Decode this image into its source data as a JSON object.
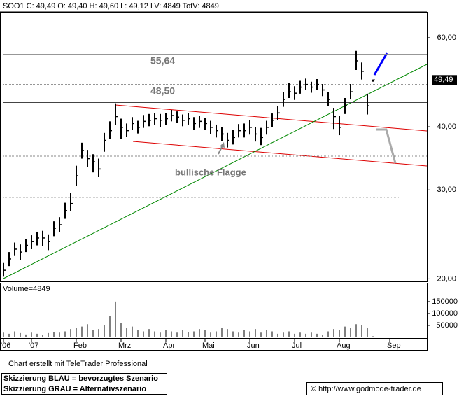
{
  "chart_data": [
    {
      "type": "ohlc",
      "title": "SOO1 C: 49,49 O: 49,40 H: 49,60 L: 49,12 LV: 4849 TotV: 4849",
      "log_scale": true,
      "grid": false,
      "color": "#000000",
      "categories": [
        "'06",
        null,
        null,
        null,
        null,
        "'07",
        null,
        null,
        null,
        null,
        null,
        null,
        null,
        "Feb",
        null,
        null,
        null,
        null,
        null,
        null,
        null,
        "Mrz",
        null,
        null,
        null,
        null,
        null,
        null,
        null,
        "Apr",
        null,
        null,
        null,
        null,
        null,
        null,
        "Mai",
        null,
        null,
        null,
        null,
        null,
        null,
        null,
        "Jun",
        null,
        null,
        null,
        null,
        null,
        null,
        null,
        "Jul",
        null,
        null,
        null,
        null,
        null,
        null,
        null,
        "Aug",
        null,
        null,
        null,
        null,
        null,
        null,
        null,
        null,
        "Sep",
        null,
        null,
        null,
        null,
        null,
        null
      ],
      "high": [
        21.5,
        22.6,
        23.6,
        23.4,
        24.0,
        24.4,
        24.8,
        24.9,
        24.5,
        26.0,
        26.5,
        28.3,
        29.6,
        33.5,
        37.2,
        36.0,
        35.3,
        34.6,
        38.9,
        41.0,
        44.5,
        41.5,
        40.6,
        41.8,
        41.1,
        42.2,
        42.4,
        42.6,
        42.4,
        42.6,
        43.2,
        42.9,
        42.3,
        42.6,
        41.8,
        42.1,
        41.7,
        41.1,
        40.4,
        39.9,
        38.9,
        39.4,
        40.5,
        40.6,
        41.2,
        40.0,
        39.8,
        41.1,
        42.5,
        44.0,
        46.8,
        48.8,
        48.1,
        49.3,
        49.8,
        49.1,
        49.7,
        48.6,
        46.8,
        43.6,
        42.0,
        45.6,
        48.6,
        56.5,
        53.6,
        46.5,
        49.6,
        null,
        null,
        null,
        null,
        null,
        null,
        null,
        null,
        null
      ],
      "low": [
        20.2,
        21.2,
        22.2,
        21.8,
        22.6,
        22.9,
        23.3,
        23.2,
        22.8,
        24.3,
        24.8,
        26.3,
        27.2,
        30.6,
        34.6,
        33.3,
        32.5,
        31.8,
        35.7,
        37.8,
        40.3,
        37.9,
        38.2,
        39.4,
        38.8,
        39.8,
        40.1,
        40.4,
        40.0,
        40.3,
        41.0,
        40.7,
        40.1,
        40.4,
        39.5,
        39.8,
        39.5,
        38.7,
        38.1,
        37.5,
        36.4,
        36.9,
        38.1,
        38.1,
        38.6,
        37.4,
        36.8,
        38.6,
        40.0,
        41.3,
        43.8,
        45.6,
        45.2,
        46.5,
        47.3,
        46.7,
        47.3,
        46.0,
        43.9,
        39.6,
        38.5,
        42.4,
        45.3,
        51.8,
        49.6,
        42.3,
        49.12,
        null,
        null,
        null,
        null,
        null,
        null,
        null,
        null,
        null
      ],
      "close": [
        20.8,
        21.9,
        22.9,
        22.6,
        23.3,
        23.7,
        24.1,
        24.1,
        23.7,
        25.2,
        25.6,
        27.3,
        28.2,
        32.0,
        35.9,
        34.6,
        34.1,
        33.0,
        37.6,
        39.3,
        41.9,
        39.9,
        39.3,
        40.6,
        39.9,
        41.0,
        41.2,
        41.5,
        41.2,
        41.5,
        42.1,
        41.8,
        41.2,
        41.5,
        40.6,
        41.0,
        40.6,
        39.9,
        39.3,
        38.7,
        37.6,
        38.1,
        39.3,
        39.3,
        39.9,
        38.7,
        38.1,
        39.9,
        41.2,
        42.6,
        45.3,
        46.9,
        46.6,
        47.9,
        48.5,
        47.9,
        48.5,
        47.3,
        45.3,
        41.9,
        39.9,
        44.0,
        46.9,
        54.0,
        51.5,
        44.0,
        49.49,
        null,
        null,
        null,
        null,
        null,
        null,
        null,
        null,
        null
      ],
      "ylim": [
        19.9,
        67.5
      ],
      "yticks": [
        {
          "value": 20,
          "label": "20,00"
        },
        {
          "value": 30,
          "label": "30,00"
        },
        {
          "value": 40,
          "label": "40,00"
        },
        {
          "value": 60,
          "label": "60,00"
        }
      ],
      "hlines": [
        {
          "value": 55.64,
          "label": "55,64"
        },
        {
          "value": 48.5,
          "label": "48,50"
        }
      ],
      "lines": [
        44.7,
        35.0,
        29.0
      ],
      "last_price": {
        "value": 49.49,
        "label": "49,49"
      },
      "annotation": "bullische Flagge"
    },
    {
      "type": "bar",
      "title": "Volume=4849",
      "color": "#000000",
      "values": [
        20000,
        15000,
        25000,
        18000,
        12000,
        20000,
        15000,
        10000,
        18000,
        22000,
        20000,
        25000,
        35000,
        40000,
        45000,
        55000,
        30000,
        35000,
        50000,
        90000,
        150000,
        60000,
        40000,
        45000,
        30000,
        25000,
        35000,
        25000,
        20000,
        30000,
        25000,
        20000,
        30000,
        22000,
        25000,
        35000,
        30000,
        20000,
        25000,
        40000,
        35000,
        25000,
        20000,
        30000,
        25000,
        35000,
        20000,
        30000,
        25000,
        15000,
        20000,
        25000,
        15000,
        20000,
        15000,
        20000,
        15000,
        10000,
        25000,
        35000,
        30000,
        45000,
        40000,
        55000,
        50000,
        40000,
        4849,
        null,
        null,
        null,
        null,
        null,
        null,
        null,
        null,
        null
      ],
      "ylim": [
        0,
        188000
      ],
      "yticks": [
        50000,
        100000,
        150000
      ]
    }
  ],
  "footer": {
    "credit": "Chart erstellt mit TeleTrader Professional",
    "legend_blue": "Skizzierung BLAU = bevorzugtes Szenario",
    "legend_gray": "Skizzierung GRAU = Alternativszenario",
    "source": "© http://www.godmode-trader.de"
  }
}
